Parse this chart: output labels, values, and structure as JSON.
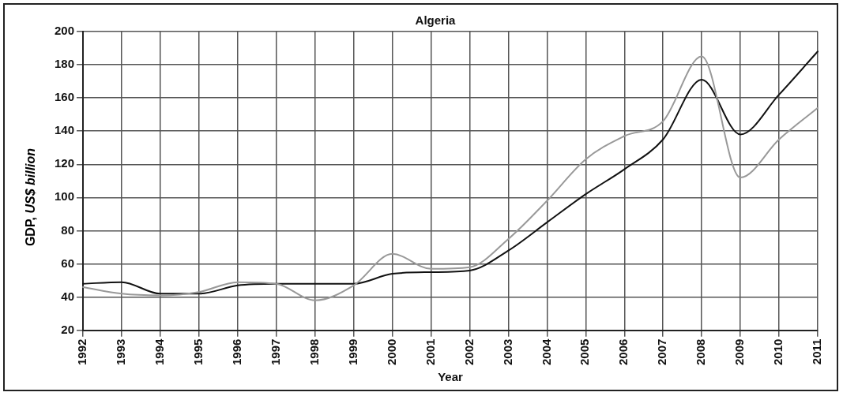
{
  "chart_data": {
    "type": "line",
    "title": "Algeria",
    "xlabel": "Year",
    "ylabel": "GDP, US$ billion",
    "categories": [
      "1992",
      "1993",
      "1994",
      "1995",
      "1996",
      "1997",
      "1998",
      "1999",
      "2000",
      "2001",
      "2002",
      "2003",
      "2004",
      "2005",
      "2006",
      "2007",
      "2008",
      "2009",
      "2010",
      "2011"
    ],
    "series": [
      {
        "color": "#999999",
        "values": [
          46,
          42,
          41,
          43,
          49,
          48,
          38,
          47,
          66,
          57,
          58,
          75,
          98,
          123,
          137,
          146,
          185,
          112,
          135,
          154
        ]
      },
      {
        "color": "#111111",
        "values": [
          48,
          49,
          42,
          42,
          47,
          48,
          48,
          48,
          54,
          55,
          56,
          68,
          85,
          102,
          117,
          135,
          171,
          138,
          162,
          188
        ]
      }
    ],
    "ylim": [
      20,
      200
    ],
    "yticks": [
      20,
      40,
      60,
      80,
      100,
      120,
      140,
      160,
      180,
      200
    ],
    "grid": true,
    "legend": false,
    "marker": "none",
    "line_style": "solid"
  }
}
